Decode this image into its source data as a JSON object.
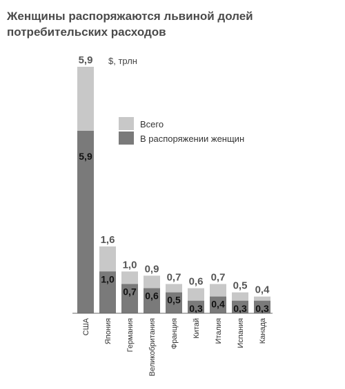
{
  "chart_data": {
    "type": "bar",
    "title": "Женщины распоряжаются львиной долей потребительских расходов",
    "unit_label": "$, трлн",
    "categories": [
      "США",
      "Япония",
      "Германия",
      "Великобритания",
      "Франция",
      "Китай",
      "Италия",
      "Испания",
      "Канада"
    ],
    "series": [
      {
        "name": "Всего",
        "values": [
          5.9,
          1.6,
          1.0,
          0.9,
          0.7,
          0.6,
          0.7,
          0.5,
          0.4
        ]
      },
      {
        "name": "В распоряжении женщин",
        "values": [
          5.9,
          1.0,
          0.7,
          0.6,
          0.5,
          0.3,
          0.4,
          0.3,
          0.3
        ]
      }
    ],
    "value_labels_total": [
      "5,9",
      "1,6",
      "1,0",
      "0,9",
      "0,7",
      "0,6",
      "0,7",
      "0,5",
      "0,4"
    ],
    "value_labels_women": [
      "5,9",
      "1,0",
      "0,7",
      "0,6",
      "0,5",
      "0,3",
      "0,4",
      "0,3",
      "0,3"
    ],
    "legend_position": "top-center",
    "grid": false,
    "colors": {
      "total": "#c8c8c8",
      "women": "#7a7a7a"
    }
  }
}
